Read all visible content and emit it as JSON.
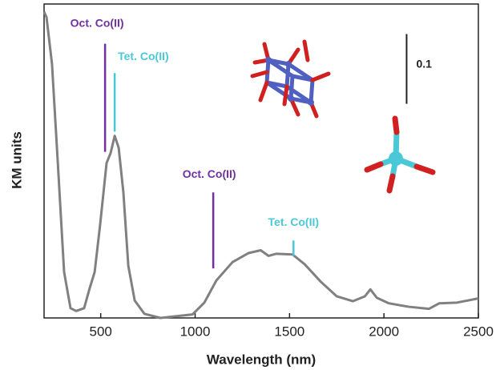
{
  "chart_data": {
    "type": "line",
    "x_label": "Wavelength (nm)",
    "y_label": "KM units",
    "xlim": [
      200,
      2500
    ],
    "ylim": [
      0,
      0.45
    ],
    "xticks": [
      500,
      1000,
      1500,
      2000,
      2500
    ],
    "series": [
      {
        "color": "#808080",
        "x": [
          200,
          213,
          242,
          272,
          306,
          340,
          370,
          412,
          442,
          468,
          497,
          531,
          552,
          574,
          595,
          620,
          646,
          680,
          731,
          816,
          986,
          1049,
          1113,
          1198,
          1283,
          1347,
          1389,
          1431,
          1516,
          1580,
          1665,
          1750,
          1835,
          1899,
          1928,
          1962,
          2026,
          2132,
          2238,
          2293,
          2387,
          2500
        ],
        "values": [
          0.439,
          0.431,
          0.364,
          0.226,
          0.066,
          0.014,
          0.01,
          0.014,
          0.043,
          0.066,
          0.134,
          0.222,
          0.236,
          0.261,
          0.244,
          0.18,
          0.075,
          0.025,
          0.006,
          0,
          0.005,
          0.022,
          0.054,
          0.08,
          0.093,
          0.097,
          0.089,
          0.092,
          0.091,
          0.077,
          0.052,
          0.031,
          0.024,
          0.031,
          0.041,
          0.029,
          0.021,
          0.016,
          0.013,
          0.021,
          0.022,
          0.028
        ]
      }
    ],
    "annotations": [
      {
        "text": "Oct. Co(II)",
        "color": "#7030a0",
        "x": 523,
        "y": [
          0.238,
          0.393
        ]
      },
      {
        "text": "Tet. Co(II)",
        "color": "#4bc8d8",
        "x": 574,
        "y": [
          0.267,
          0.351
        ]
      },
      {
        "text": "Oct. Co(II)",
        "color": "#7030a0",
        "x": 1096,
        "y": [
          0.071,
          0.18
        ]
      },
      {
        "text": "Tet.  Co(II)",
        "color": "#4bc8d8",
        "x": 1521,
        "y": [
          0.089,
          0.111
        ]
      }
    ],
    "scale_bar": {
      "value": 0.1,
      "x": 2120,
      "y": 0.307
    }
  }
}
